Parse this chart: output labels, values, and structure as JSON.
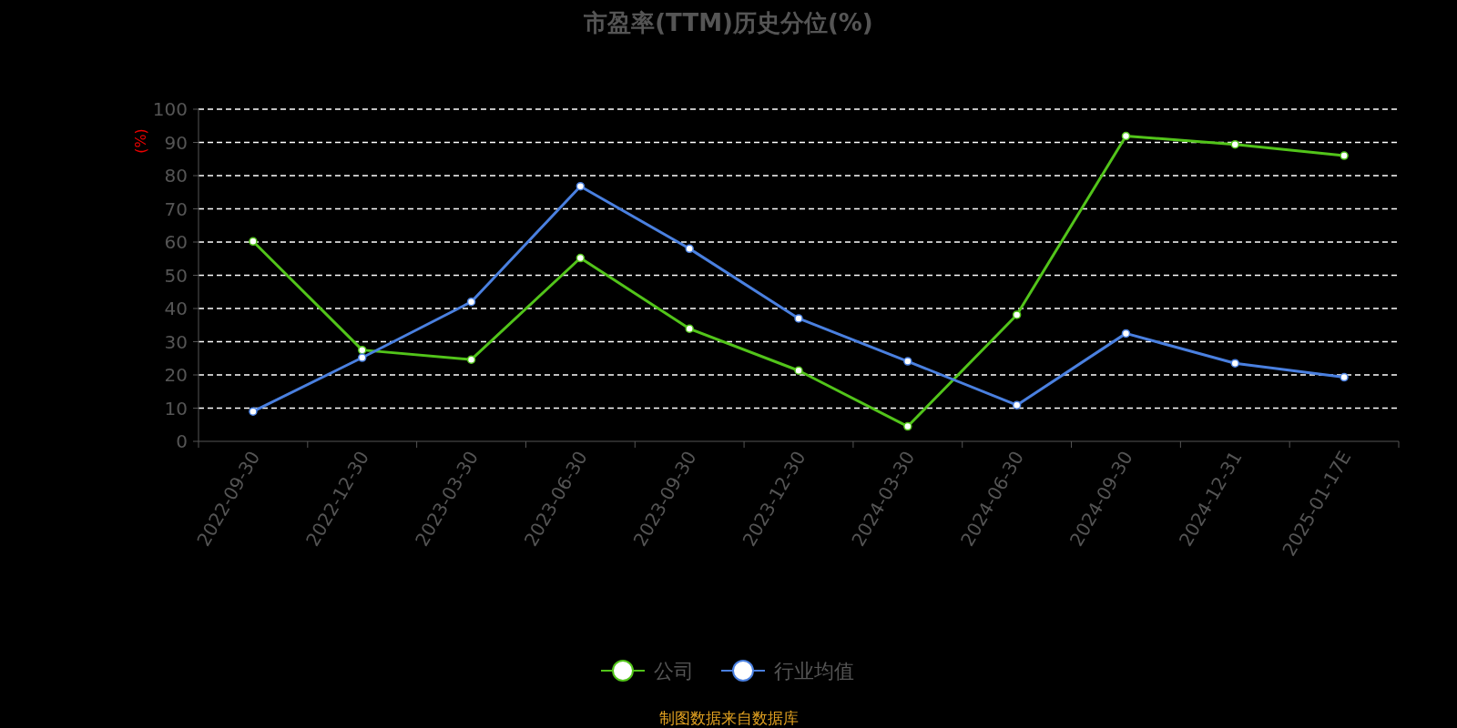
{
  "chart_data": {
    "type": "line",
    "title": "市盈率(TTM)历史分位(%)",
    "ylabel": "(%)",
    "categories": [
      "2022-09-30",
      "2022-12-30",
      "2023-03-30",
      "2023-06-30",
      "2023-09-30",
      "2023-12-30",
      "2024-03-30",
      "2024-06-30",
      "2024-09-30",
      "2024-12-31",
      "2025-01-17E"
    ],
    "series": [
      {
        "name": "公司",
        "color": "#52c41a",
        "values": [
          60.2,
          27.5,
          24.6,
          55.2,
          33.9,
          21.3,
          4.5,
          38.1,
          91.9,
          89.4,
          86.0
        ]
      },
      {
        "name": "行业均值",
        "color": "#4a80e0",
        "values": [
          9.0,
          25.2,
          42.0,
          76.8,
          58.0,
          37.0,
          24.1,
          10.9,
          32.5,
          23.5,
          19.3
        ]
      }
    ],
    "ylim": [
      0,
      100
    ],
    "yticks": [
      0,
      10,
      20,
      30,
      40,
      50,
      60,
      70,
      80,
      90,
      100
    ],
    "grid": "y",
    "legend": "bottom",
    "marker": "circle",
    "line_style": "solid",
    "annotations": [
      "制图数据来自数据库"
    ]
  }
}
